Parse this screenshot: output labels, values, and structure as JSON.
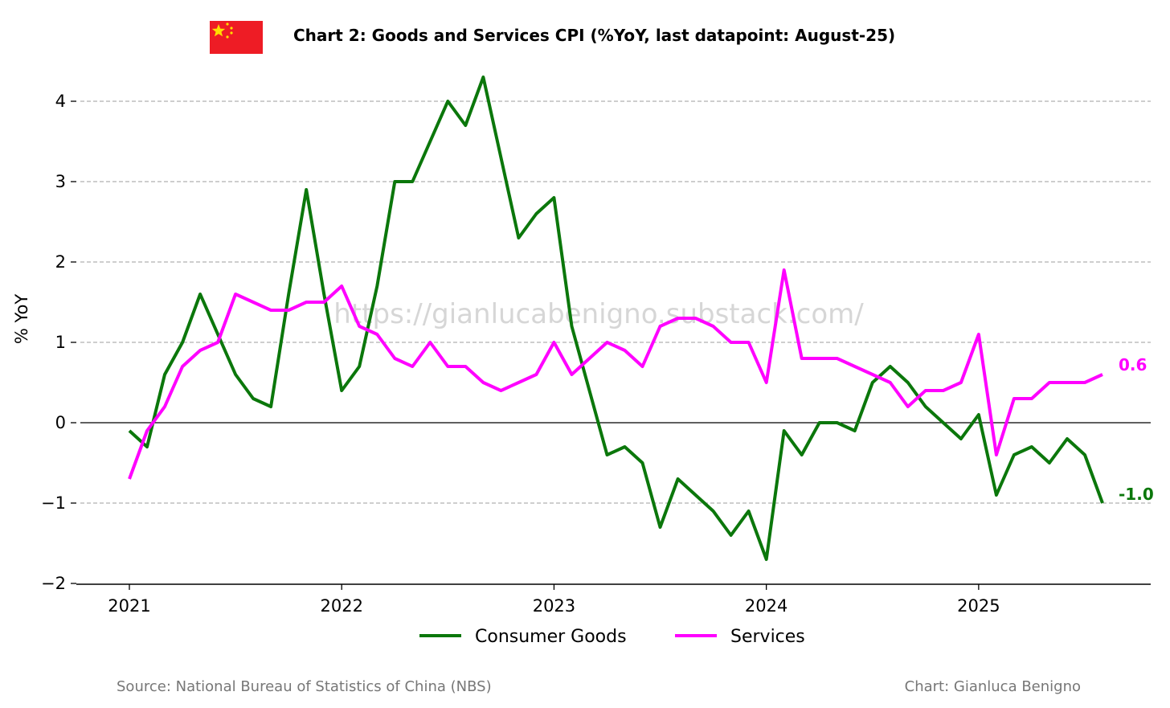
{
  "chart_data": {
    "type": "line",
    "title": "Chart 2: Goods and Services CPI (%YoY, last datapoint: August-25)",
    "ylabel": "% YoY",
    "xlabel": "",
    "ylim": [
      -2,
      4.4
    ],
    "yticks": [
      -2,
      -1,
      0,
      1,
      2,
      3,
      4
    ],
    "ytick_labels": [
      "−2",
      "−1",
      "0",
      "1",
      "2",
      "3",
      "4"
    ],
    "xticks": [
      "2021",
      "2022",
      "2023",
      "2024",
      "2025"
    ],
    "x_start": "2021-01",
    "x_end": "2025-08",
    "grid": "horizontal dashed",
    "legend_position": "bottom-center",
    "colors": {
      "goods": "#0b770b",
      "services": "#ff00ff",
      "grid": "#b0b0b0",
      "flag_red": "#ee1c25",
      "flag_star": "#ffde00"
    },
    "series": [
      {
        "name": "Consumer Goods",
        "key": "goods",
        "end_label": "-1.0",
        "values": [
          -0.1,
          -0.3,
          0.6,
          1.0,
          1.6,
          1.1,
          0.6,
          0.3,
          0.2,
          1.6,
          2.9,
          1.6,
          0.4,
          0.7,
          1.7,
          3.0,
          3.0,
          3.5,
          4.0,
          3.7,
          4.3,
          3.3,
          2.3,
          2.6,
          2.8,
          1.2,
          0.4,
          -0.4,
          -0.3,
          -0.5,
          -1.3,
          -0.7,
          -0.9,
          -1.1,
          -1.4,
          -1.1,
          -1.7,
          -0.1,
          -0.4,
          0.0,
          0.0,
          -0.1,
          0.5,
          0.7,
          0.5,
          0.2,
          0.0,
          -0.2,
          0.1,
          -0.9,
          -0.4,
          -0.3,
          -0.5,
          -0.2,
          -0.4,
          -1.0
        ]
      },
      {
        "name": "Services",
        "key": "services",
        "end_label": "0.6",
        "values": [
          -0.7,
          -0.1,
          0.2,
          0.7,
          0.9,
          1.0,
          1.6,
          1.5,
          1.4,
          1.4,
          1.5,
          1.5,
          1.7,
          1.2,
          1.1,
          0.8,
          0.7,
          1.0,
          0.7,
          0.7,
          0.5,
          0.4,
          0.5,
          0.6,
          1.0,
          0.6,
          0.8,
          1.0,
          0.9,
          0.7,
          1.2,
          1.3,
          1.3,
          1.2,
          1.0,
          1.0,
          0.5,
          1.9,
          0.8,
          0.8,
          0.8,
          0.7,
          0.6,
          0.5,
          0.2,
          0.4,
          0.4,
          0.5,
          1.1,
          -0.4,
          0.3,
          0.3,
          0.5,
          0.5,
          0.5,
          0.6
        ]
      }
    ]
  },
  "watermark": "https://gianlucabenigno.substack.com/",
  "footer": {
    "source": "Source: National Bureau of Statistics of China (NBS)",
    "credit": "Chart: Gianluca Benigno"
  },
  "flag_icon": "china-flag-icon"
}
